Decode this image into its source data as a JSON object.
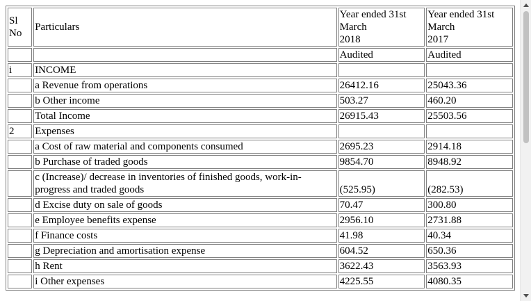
{
  "header": {
    "sl_no": "Sl No",
    "particulars": "Particulars",
    "year1": [
      "Year ended 31st",
      "March",
      "2018"
    ],
    "year2": [
      "Year ended 31st",
      "March",
      "2017"
    ]
  },
  "subheader": {
    "year1": "Audited",
    "year2": "Audited"
  },
  "rows": [
    {
      "sl": "i",
      "label": "INCOME",
      "y2018": "",
      "y2017": ""
    },
    {
      "sl": "",
      "label": "a Revenue from operations",
      "y2018": "26412.16",
      "y2017": "25043.36"
    },
    {
      "sl": "",
      "label": "b Other income",
      "y2018": "503.27",
      "y2017": "460.20"
    },
    {
      "sl": "",
      "label": "Total Income",
      "y2018": "26915.43",
      "y2017": "25503.56"
    },
    {
      "sl": "2",
      "label": "Expenses",
      "y2018": "",
      "y2017": ""
    },
    {
      "sl": "",
      "label": "a Cost of raw material and components consumed",
      "y2018": "2695.23",
      "y2017": "2914.18"
    },
    {
      "sl": "",
      "label": "b Purchase of traded goods",
      "y2018": "9854.70",
      "y2017": "8948.92"
    },
    {
      "sl": "",
      "label": "c (Increase)/ decrease in inventories of finished goods, work-in-progress and traded goods",
      "label_lines": [
        "c (Increase)/ decrease in inventories of finished goods, work-in-",
        "progress and traded goods"
      ],
      "y2018": "(525.95)",
      "y2017": "(282.53)"
    },
    {
      "sl": "",
      "label": "d Excise duty on sale of goods",
      "y2018": "70.47",
      "y2017": "300.80"
    },
    {
      "sl": "",
      "label": "e Employee benefits expense",
      "y2018": "2956.10",
      "y2017": "2731.88"
    },
    {
      "sl": "",
      "label": "f Finance costs",
      "y2018": "41.98",
      "y2017": "40.34"
    },
    {
      "sl": "",
      "label": "g Depreciation and amortisation expense",
      "y2018": "604.52",
      "y2017": "650.36"
    },
    {
      "sl": "",
      "label": "h Rent",
      "y2018": "3622.43",
      "y2017": "3563.93"
    },
    {
      "sl": "",
      "label": "i Other expenses",
      "y2018": "4225.55",
      "y2017": "4080.35"
    }
  ],
  "colors": {
    "border": "#808080",
    "scroll_track": "#f1f1f1",
    "scroll_thumb": "#c1c1c1"
  }
}
